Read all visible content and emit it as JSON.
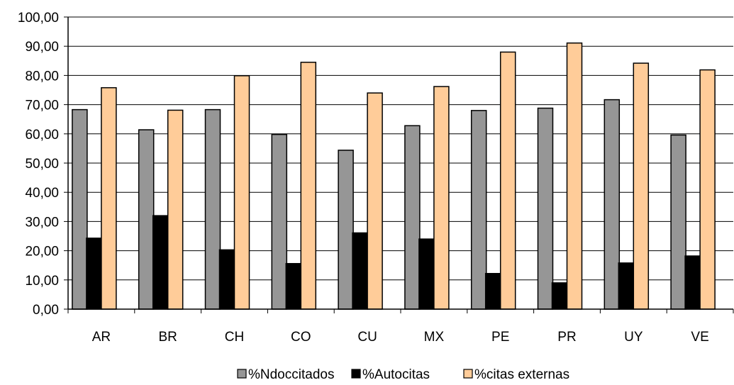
{
  "chart_data": {
    "type": "bar",
    "categories": [
      "AR",
      "BR",
      "CH",
      "CO",
      "CU",
      "MX",
      "PE",
      "PR",
      "UY",
      "VE"
    ],
    "series": [
      {
        "name": "%Ndoccitados",
        "color": "#969696",
        "values": [
          68.3,
          61.4,
          68.3,
          59.8,
          54.4,
          62.8,
          68.0,
          68.8,
          71.7,
          59.6
        ]
      },
      {
        "name": "%Autocitas",
        "color": "#000000",
        "values": [
          24.3,
          32.0,
          20.3,
          15.6,
          26.1,
          24.0,
          12.2,
          9.0,
          15.8,
          18.2
        ]
      },
      {
        "name": "%citas externas",
        "color": "#FFCC99",
        "values": [
          75.8,
          68.1,
          79.9,
          84.5,
          74.0,
          76.2,
          88.0,
          91.1,
          84.2,
          81.9
        ]
      }
    ],
    "ylim": [
      0,
      100
    ],
    "yticks": [
      "0,00",
      "10,00",
      "20,00",
      "30,00",
      "40,00",
      "50,00",
      "60,00",
      "70,00",
      "80,00",
      "90,00",
      "100,00"
    ],
    "grid": true,
    "legend_position": "bottom"
  }
}
